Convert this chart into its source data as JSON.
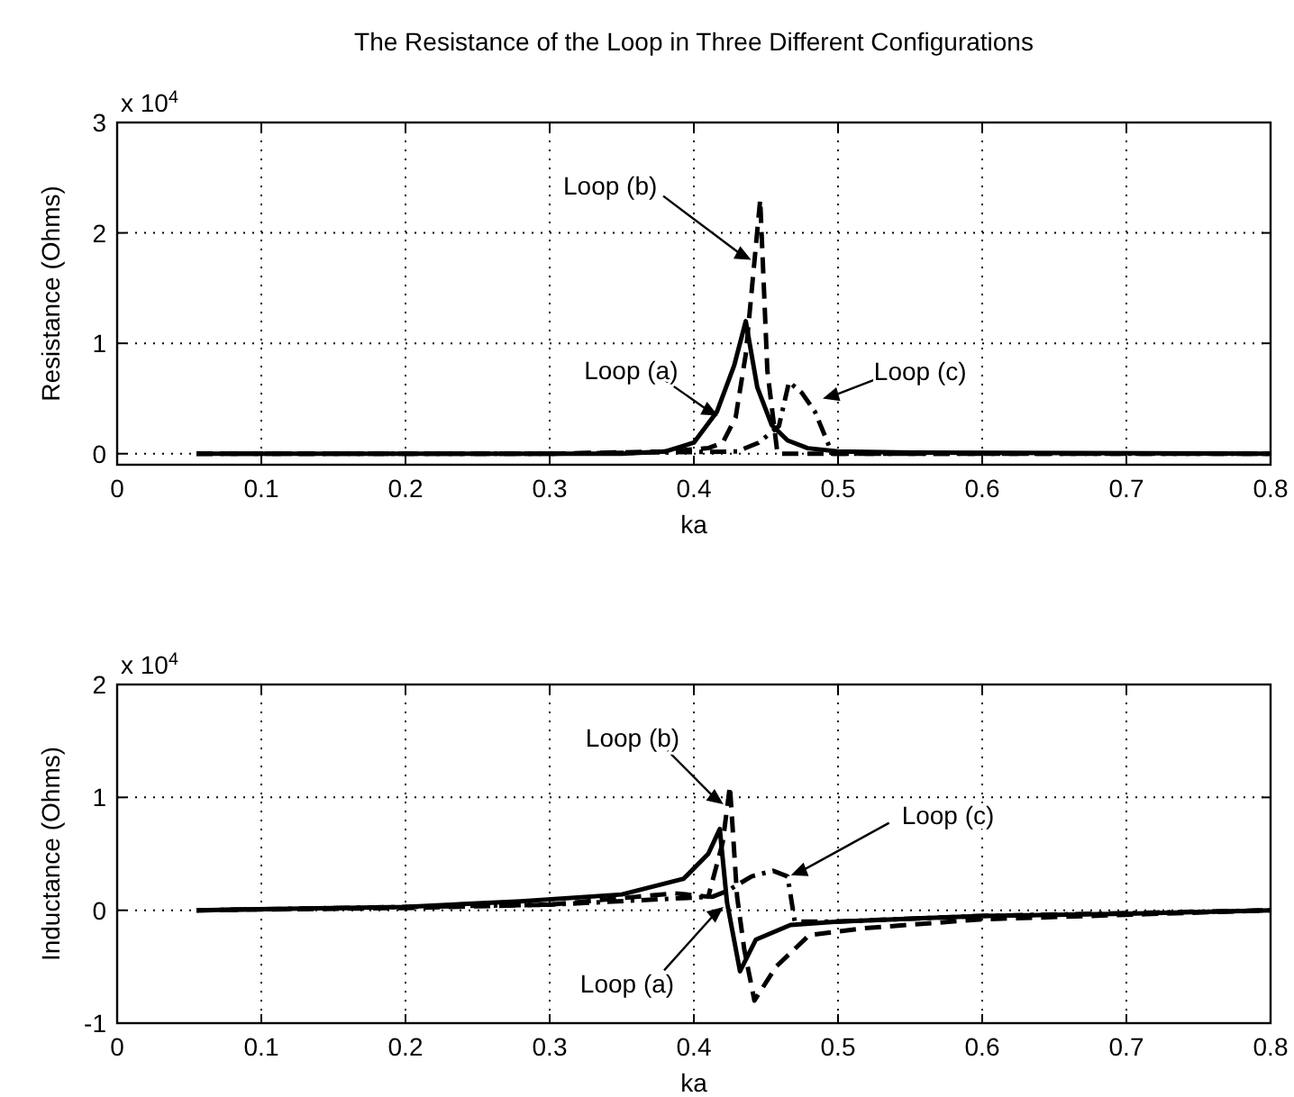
{
  "chart_data": [
    {
      "type": "line",
      "title": "The Resistance of the Loop in Three Different Configurations",
      "xlabel": "ka",
      "ylabel": "Resistance (Ohms)",
      "xlim": [
        0,
        0.8
      ],
      "xticks": [
        0,
        0.1,
        0.2,
        0.3,
        0.4,
        0.5,
        0.6,
        0.7,
        0.8
      ],
      "ylim": [
        -0.1,
        3
      ],
      "yticks": [
        0,
        1,
        2,
        3
      ],
      "grid": true,
      "marker": "none",
      "annotations": [
        "x 10$^{4}$",
        {
          "text": "Loop (b)",
          "x": 0.442,
          "y": 1.74
        },
        {
          "text": "Loop (a)",
          "x": 0.419,
          "y": 0.33
        },
        {
          "text": "Loop (c)",
          "x": 0.487,
          "y": 0.49
        }
      ],
      "series": [
        {
          "color": "#000000",
          "line_style": "solid",
          "x": [
            0.055,
            0.2,
            0.35,
            0.38,
            0.4,
            0.416,
            0.428,
            0.436,
            0.444,
            0.454,
            0.465,
            0.479,
            0.5,
            0.55,
            0.8
          ],
          "values": [
            0,
            0,
            0,
            0.02,
            0.1,
            0.38,
            0.8,
            1.2,
            0.6,
            0.26,
            0.12,
            0.05,
            0.02,
            0.01,
            0
          ]
        },
        {
          "color": "#000000",
          "line_style": "dashed",
          "x": [
            0.055,
            0.3,
            0.38,
            0.41,
            0.42,
            0.429,
            0.436,
            0.441,
            0.446,
            0.451,
            0.458,
            0.5,
            0.8
          ],
          "values": [
            0,
            0,
            0.02,
            0.05,
            0.1,
            0.33,
            0.9,
            1.6,
            2.3,
            0.75,
            0,
            0,
            0
          ]
        },
        {
          "color": "#000000",
          "line_style": "dashdot",
          "x": [
            0.055,
            0.3,
            0.43,
            0.445,
            0.459,
            0.466,
            0.475,
            0.484,
            0.496,
            0.52,
            0.8
          ],
          "values": [
            0,
            0,
            0.02,
            0.1,
            0.25,
            0.65,
            0.55,
            0.38,
            0,
            0,
            0
          ]
        }
      ]
    },
    {
      "type": "line",
      "xlabel": "ka",
      "ylabel": "Inductance (Ohms)",
      "xlim": [
        0,
        0.8
      ],
      "xticks": [
        0,
        0.1,
        0.2,
        0.3,
        0.4,
        0.5,
        0.6,
        0.7,
        0.8
      ],
      "ylim": [
        -1,
        2
      ],
      "yticks": [
        -1,
        0,
        1,
        2
      ],
      "grid": true,
      "marker": "none",
      "annotations": [
        "x 10$^{4}$",
        {
          "text": "Loop (b)",
          "x": 0.4225,
          "y": 0.92
        },
        {
          "text": "Loop (c)",
          "x": 0.465,
          "y": 0.3
        },
        {
          "text": "Loop (a)",
          "x": 0.4225,
          "y": 0.05
        }
      ],
      "series": [
        {
          "color": "#000000",
          "line_style": "solid",
          "x": [
            0.055,
            0.2,
            0.28,
            0.35,
            0.393,
            0.41,
            0.418,
            0.423,
            0.432,
            0.443,
            0.467,
            0.5,
            0.6,
            0.7,
            0.8
          ],
          "values": [
            0,
            0.03,
            0.08,
            0.14,
            0.28,
            0.5,
            0.72,
            0.07,
            -0.54,
            -0.26,
            -0.13,
            -0.1,
            -0.05,
            -0.03,
            0
          ]
        },
        {
          "color": "#000000",
          "line_style": "dashed",
          "x": [
            0.055,
            0.2,
            0.3,
            0.387,
            0.41,
            0.42,
            0.425,
            0.43,
            0.435,
            0.442,
            0.457,
            0.48,
            0.517,
            0.6,
            0.8
          ],
          "values": [
            0,
            0.02,
            0.05,
            0.15,
            0.12,
            0.6,
            1.1,
            0.12,
            -0.35,
            -0.8,
            -0.5,
            -0.22,
            -0.16,
            -0.08,
            0
          ]
        },
        {
          "color": "#000000",
          "line_style": "dashdot",
          "x": [
            0.055,
            0.3,
            0.413,
            0.423,
            0.44,
            0.455,
            0.465,
            0.47,
            0.5,
            0.6,
            0.8
          ],
          "values": [
            0,
            0.05,
            0.12,
            0.17,
            0.3,
            0.35,
            0.3,
            -0.1,
            -0.1,
            -0.05,
            0
          ]
        }
      ]
    }
  ]
}
